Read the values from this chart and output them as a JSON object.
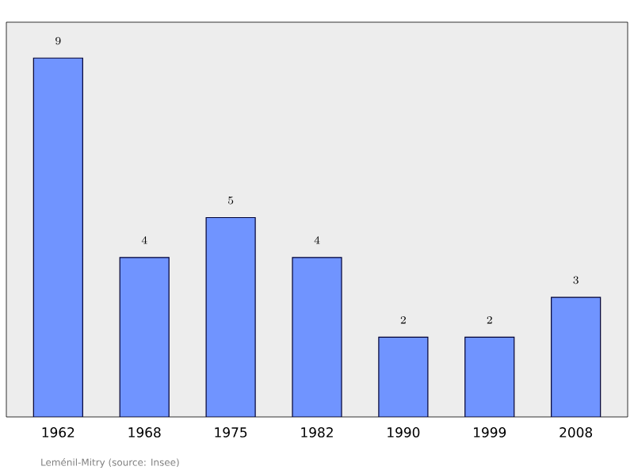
{
  "chart_data": {
    "type": "bar",
    "categories": [
      "1962",
      "1968",
      "1975",
      "1982",
      "1990",
      "1999",
      "2008"
    ],
    "values": [
      9,
      4,
      5,
      4,
      2,
      2,
      3
    ],
    "color": "#7094ff",
    "data_labels": true,
    "annotations": [
      "Leménil-Mitry    (source: Insee)"
    ]
  }
}
